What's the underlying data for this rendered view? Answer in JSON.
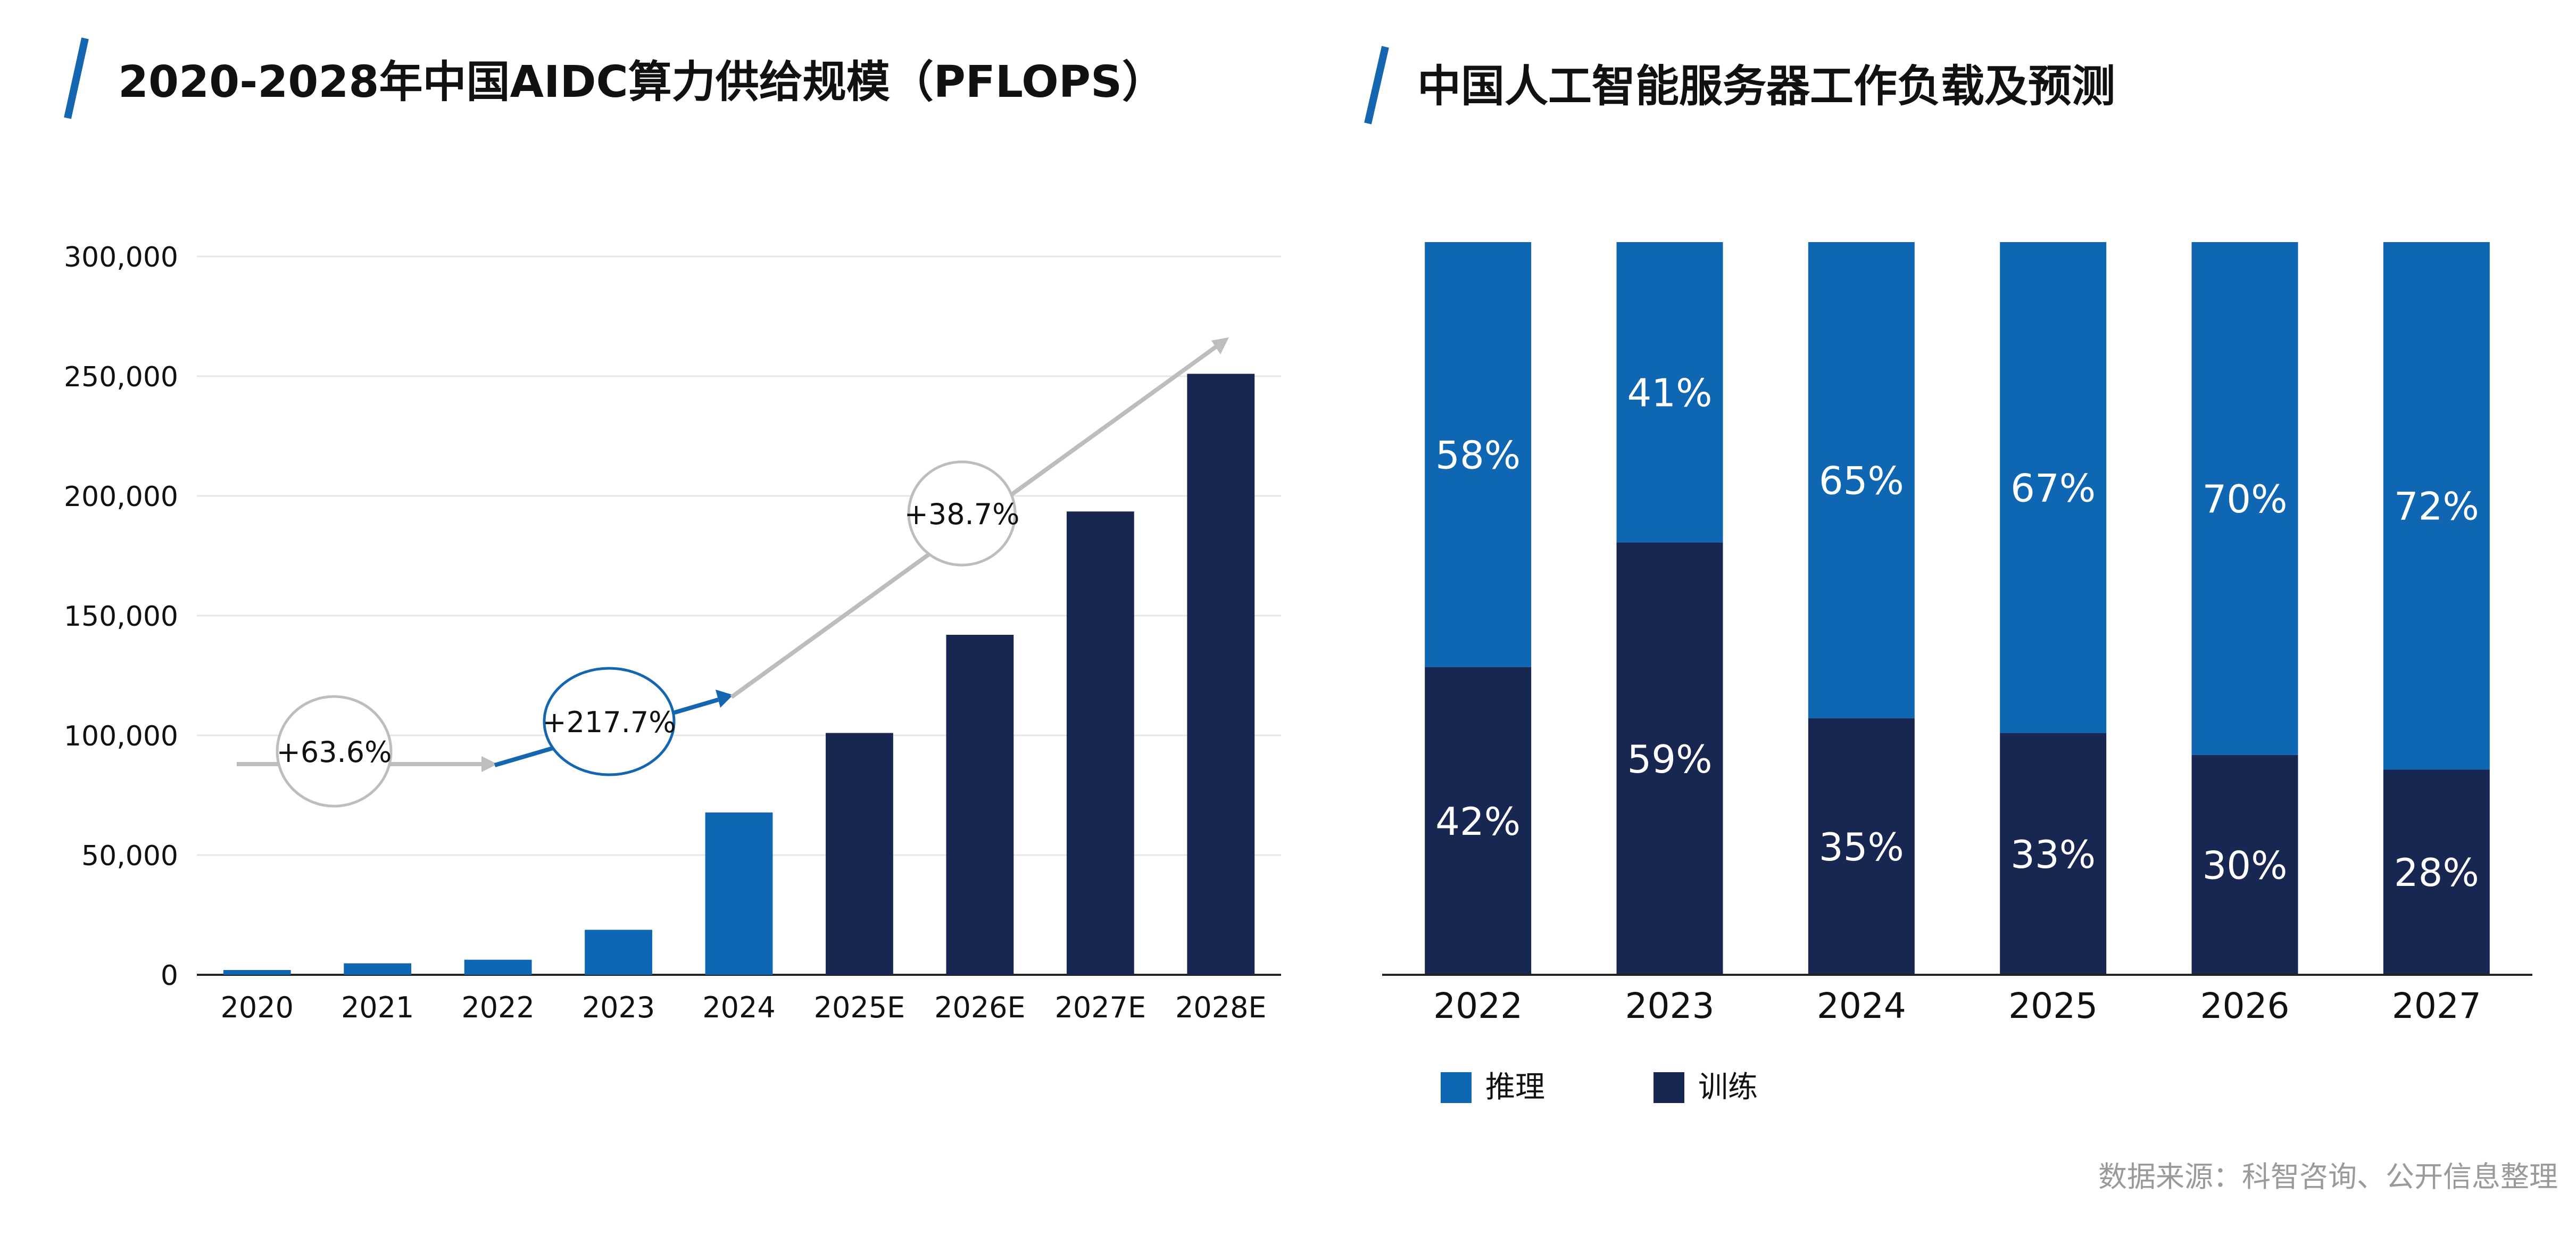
{
  "colors": {
    "dark_navy": "#172752",
    "blue": "#0F67B3",
    "accent": "#1566B0",
    "grid": "#E6E6E6",
    "gray_arrow": "#BDBDBD",
    "text": "#111111",
    "source": "#9A9A9A"
  },
  "charts": {
    "left": {
      "title": "2020-2028年中国AIDC算力供给规模（PFLOPS）"
    },
    "right": {
      "title": "中国人工智能服务器工作负载及预测"
    }
  },
  "annotations": {
    "growth_1": "+63.6%",
    "growth_2": "+217.7%",
    "growth_3": "+38.7%"
  },
  "source_note": "数据来源：科智咨询、公开信息整理",
  "chart_data": [
    {
      "type": "bar",
      "title": "2020-2028年中国AIDC算力供给规模（PFLOPS）",
      "categories": [
        "2020",
        "2021",
        "2022",
        "2023",
        "2024",
        "2025E",
        "2026E",
        "2027E",
        "2028E"
      ],
      "values": [
        2000,
        4800,
        6300,
        18800,
        67800,
        101000,
        142000,
        193500,
        251000
      ],
      "bar_colors": [
        "blue",
        "blue",
        "blue",
        "blue",
        "blue",
        "dark_navy",
        "dark_navy",
        "dark_navy",
        "dark_navy"
      ],
      "ylim": [
        0,
        300000
      ],
      "yticks": [
        0,
        50000,
        100000,
        150000,
        200000,
        250000,
        300000
      ],
      "ytick_labels": [
        "0",
        "50,000",
        "100,000",
        "150,000",
        "200,000",
        "250,000",
        "300,000"
      ],
      "grid": true
    },
    {
      "type": "bar",
      "stacked": true,
      "percent": true,
      "title": "中国人工智能服务器工作负载及预测",
      "categories": [
        "2022",
        "2023",
        "2024",
        "2025",
        "2026",
        "2027"
      ],
      "series": [
        {
          "name": "推理",
          "color": "blue",
          "values": [
            58,
            41,
            65,
            67,
            70,
            72
          ],
          "labels": [
            "58%",
            "41%",
            "65%",
            "67%",
            "70%",
            "72%"
          ]
        },
        {
          "name": "训练",
          "color": "dark_navy",
          "values": [
            42,
            59,
            35,
            33,
            30,
            28
          ],
          "labels": [
            "42%",
            "59%",
            "35%",
            "33%",
            "30%",
            "28%"
          ]
        }
      ],
      "legend": "bottom-left"
    }
  ]
}
